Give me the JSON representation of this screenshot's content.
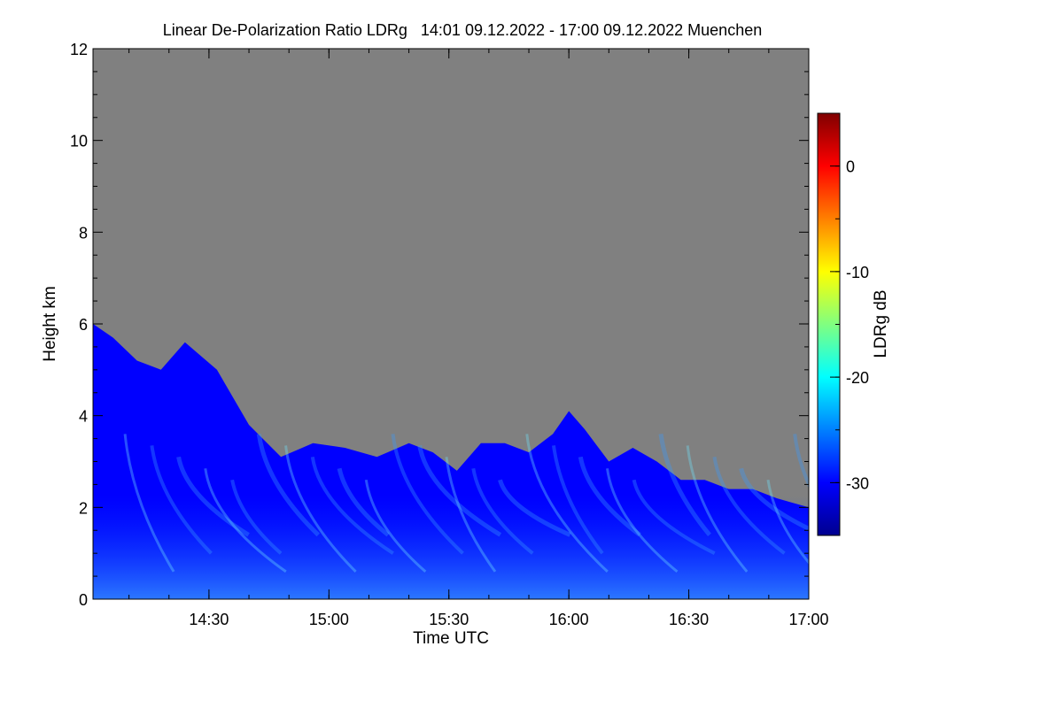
{
  "chart_data": {
    "type": "heatmap",
    "title": "Linear De-Polarization Ratio LDRg   14:01 09.12.2022 - 17:00 09.12.2022 Muenchen",
    "xlabel": "Time UTC",
    "ylabel": "Height km",
    "xlim": [
      "14:01",
      "17:00"
    ],
    "ylim": [
      0,
      12
    ],
    "x_ticks": [
      {
        "value": "14:30",
        "minutes": 870
      },
      {
        "value": "15:00",
        "minutes": 900
      },
      {
        "value": "15:30",
        "minutes": 930
      },
      {
        "value": "16:00",
        "minutes": 960
      },
      {
        "value": "16:30",
        "minutes": 990
      },
      {
        "value": "17:00",
        "minutes": 1020
      }
    ],
    "y_ticks": [
      "0",
      "2",
      "4",
      "6",
      "8",
      "10",
      "12"
    ],
    "no_signal_color": "#808080",
    "colorbar": {
      "label": "LDRg dB",
      "range": [
        -35,
        5
      ],
      "ticks": [
        "0",
        "-10",
        "-20",
        "-30"
      ],
      "colormap": [
        "#00008f",
        "#0000ff",
        "#0080ff",
        "#00ffff",
        "#80ff80",
        "#ffff00",
        "#ff8000",
        "#ff0000",
        "#800000"
      ]
    },
    "cloud_top_km": [
      {
        "t": 841,
        "h": 6.0
      },
      {
        "t": 846,
        "h": 5.7
      },
      {
        "t": 852,
        "h": 5.2
      },
      {
        "t": 858,
        "h": 5.0
      },
      {
        "t": 864,
        "h": 5.6
      },
      {
        "t": 872,
        "h": 5.0
      },
      {
        "t": 880,
        "h": 3.8
      },
      {
        "t": 888,
        "h": 3.1
      },
      {
        "t": 896,
        "h": 3.4
      },
      {
        "t": 904,
        "h": 3.3
      },
      {
        "t": 912,
        "h": 3.1
      },
      {
        "t": 920,
        "h": 3.4
      },
      {
        "t": 926,
        "h": 3.2
      },
      {
        "t": 932,
        "h": 2.8
      },
      {
        "t": 938,
        "h": 3.4
      },
      {
        "t": 944,
        "h": 3.4
      },
      {
        "t": 950,
        "h": 3.2
      },
      {
        "t": 956,
        "h": 3.6
      },
      {
        "t": 960,
        "h": 4.1
      },
      {
        "t": 964,
        "h": 3.7
      },
      {
        "t": 970,
        "h": 3.0
      },
      {
        "t": 976,
        "h": 3.3
      },
      {
        "t": 982,
        "h": 3.0
      },
      {
        "t": 988,
        "h": 2.6
      },
      {
        "t": 994,
        "h": 2.6
      },
      {
        "t": 1000,
        "h": 2.4
      },
      {
        "t": 1006,
        "h": 2.4
      },
      {
        "t": 1012,
        "h": 2.2
      },
      {
        "t": 1020,
        "h": 2.0
      }
    ],
    "mean_ldr_db": -28
  }
}
